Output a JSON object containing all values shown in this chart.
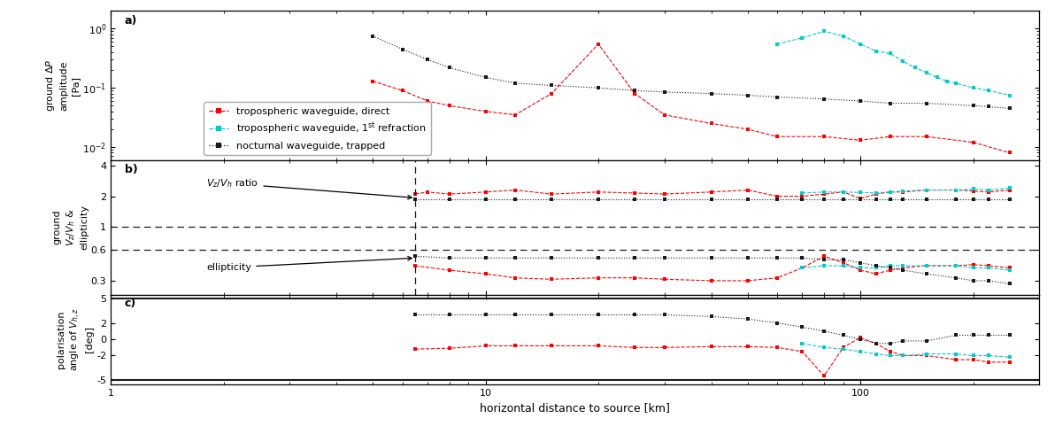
{
  "xlabel": "horizontal distance to source [km]",
  "ylabel_a": "ground $\\Delta P$\namplitude\n[Pa]",
  "ylabel_b": "ground\n$V_z/V_h$ &\nellipticity",
  "ylabel_c": "polarisation\nangle of $V_{h,z}$\n[deg]",
  "legend_labels": [
    "tropospheric waveguide, direct",
    "tropospheric waveguide, 1$^{\\rm st}$ refraction",
    "nocturnal waveguide, trapped"
  ],
  "panel_a": {
    "red_x": [
      5.0,
      6.0,
      7.0,
      8.0,
      10.0,
      12.0,
      15.0,
      20.0,
      25.0,
      30.0,
      40.0,
      50.0,
      60.0,
      80.0,
      100.0,
      120.0,
      150.0,
      200.0,
      250.0
    ],
    "red_y": [
      0.13,
      0.09,
      0.06,
      0.05,
      0.04,
      0.035,
      0.08,
      0.55,
      0.08,
      0.035,
      0.025,
      0.02,
      0.015,
      0.015,
      0.013,
      0.015,
      0.015,
      0.012,
      0.008
    ],
    "cyan_x": [
      60.0,
      70.0,
      80.0,
      90.0,
      100.0,
      110.0,
      120.0,
      130.0,
      140.0,
      150.0,
      160.0,
      170.0,
      180.0,
      200.0,
      220.0,
      250.0
    ],
    "cyan_y": [
      0.55,
      0.7,
      0.9,
      0.75,
      0.55,
      0.42,
      0.38,
      0.28,
      0.22,
      0.18,
      0.15,
      0.13,
      0.12,
      0.1,
      0.09,
      0.075
    ],
    "black_x": [
      5.0,
      6.0,
      7.0,
      8.0,
      10.0,
      12.0,
      15.0,
      20.0,
      25.0,
      30.0,
      40.0,
      50.0,
      60.0,
      80.0,
      100.0,
      120.0,
      150.0,
      200.0,
      220.0,
      250.0
    ],
    "black_y": [
      0.75,
      0.45,
      0.3,
      0.22,
      0.15,
      0.12,
      0.11,
      0.1,
      0.09,
      0.085,
      0.08,
      0.075,
      0.07,
      0.065,
      0.06,
      0.055,
      0.055,
      0.05,
      0.048,
      0.045
    ]
  },
  "panel_b": {
    "dashed_line_x": 6.5,
    "red_ratio_x": [
      6.5,
      7.0,
      8.0,
      10.0,
      12.0,
      15.0,
      20.0,
      25.0,
      30.0,
      40.0,
      50.0,
      60.0,
      70.0,
      80.0,
      90.0,
      100.0,
      110.0,
      120.0,
      130.0,
      150.0,
      180.0,
      200.0,
      220.0,
      250.0
    ],
    "red_ratio_y": [
      2.1,
      2.2,
      2.1,
      2.2,
      2.3,
      2.1,
      2.2,
      2.15,
      2.1,
      2.2,
      2.3,
      2.0,
      2.0,
      2.1,
      2.2,
      1.9,
      2.1,
      2.2,
      2.2,
      2.3,
      2.3,
      2.25,
      2.2,
      2.3
    ],
    "black_ratio_x": [
      6.5,
      8.0,
      10.0,
      12.0,
      15.0,
      20.0,
      25.0,
      30.0,
      40.0,
      50.0,
      60.0,
      70.0,
      80.0,
      90.0,
      100.0,
      110.0,
      120.0,
      130.0,
      150.0,
      180.0,
      200.0,
      220.0,
      250.0
    ],
    "black_ratio_y": [
      1.85,
      1.85,
      1.85,
      1.85,
      1.85,
      1.85,
      1.85,
      1.85,
      1.85,
      1.85,
      1.85,
      1.85,
      1.85,
      1.85,
      1.85,
      1.85,
      1.85,
      1.85,
      1.85,
      1.85,
      1.85,
      1.85,
      1.85
    ],
    "cyan_ratio_x": [
      70.0,
      80.0,
      90.0,
      100.0,
      110.0,
      120.0,
      130.0,
      150.0,
      180.0,
      200.0,
      220.0,
      250.0
    ],
    "cyan_ratio_y": [
      2.15,
      2.2,
      2.2,
      2.18,
      2.15,
      2.2,
      2.25,
      2.3,
      2.3,
      2.35,
      2.3,
      2.4
    ],
    "red_ellip_x": [
      6.5,
      8.0,
      10.0,
      12.0,
      15.0,
      20.0,
      25.0,
      30.0,
      40.0,
      50.0,
      60.0,
      70.0,
      80.0,
      90.0,
      100.0,
      110.0,
      120.0,
      130.0,
      150.0,
      180.0,
      200.0,
      220.0,
      250.0
    ],
    "red_ellip_y": [
      0.42,
      0.38,
      0.35,
      0.32,
      0.31,
      0.32,
      0.32,
      0.31,
      0.3,
      0.3,
      0.32,
      0.4,
      0.52,
      0.45,
      0.38,
      0.35,
      0.38,
      0.4,
      0.42,
      0.42,
      0.43,
      0.42,
      0.4
    ],
    "black_ellip_x": [
      6.5,
      8.0,
      10.0,
      12.0,
      15.0,
      20.0,
      25.0,
      30.0,
      40.0,
      50.0,
      60.0,
      70.0,
      80.0,
      90.0,
      100.0,
      110.0,
      120.0,
      130.0,
      150.0,
      180.0,
      200.0,
      220.0,
      250.0
    ],
    "black_ellip_y": [
      0.52,
      0.5,
      0.5,
      0.5,
      0.5,
      0.5,
      0.5,
      0.5,
      0.5,
      0.5,
      0.5,
      0.5,
      0.48,
      0.48,
      0.45,
      0.42,
      0.4,
      0.38,
      0.35,
      0.32,
      0.3,
      0.3,
      0.28
    ],
    "cyan_ellip_x": [
      70.0,
      80.0,
      90.0,
      100.0,
      110.0,
      120.0,
      130.0,
      150.0,
      180.0,
      200.0,
      220.0,
      250.0
    ],
    "cyan_ellip_y": [
      0.4,
      0.42,
      0.42,
      0.4,
      0.4,
      0.42,
      0.42,
      0.42,
      0.42,
      0.4,
      0.4,
      0.38
    ],
    "hline_1": 1.0,
    "hline_2": 0.6,
    "yticks": [
      0.3,
      0.6,
      1.0,
      2.0,
      4.0
    ],
    "ylim": [
      0.22,
      4.5
    ]
  },
  "panel_c": {
    "red_x": [
      6.5,
      8.0,
      10.0,
      12.0,
      15.0,
      20.0,
      25.0,
      30.0,
      40.0,
      50.0,
      60.0,
      70.0,
      80.0,
      90.0,
      100.0,
      110.0,
      120.0,
      130.0,
      150.0,
      180.0,
      200.0,
      220.0,
      250.0
    ],
    "red_y": [
      -1.2,
      -1.1,
      -0.8,
      -0.8,
      -0.8,
      -0.8,
      -1.0,
      -1.0,
      -0.9,
      -0.9,
      -1.0,
      -1.5,
      -4.5,
      -1.0,
      0.2,
      -0.5,
      -1.5,
      -2.0,
      -2.0,
      -2.5,
      -2.5,
      -2.8,
      -2.8
    ],
    "black_x": [
      6.5,
      8.0,
      10.0,
      12.0,
      15.0,
      20.0,
      25.0,
      30.0,
      40.0,
      50.0,
      60.0,
      70.0,
      80.0,
      90.0,
      100.0,
      110.0,
      120.0,
      130.0,
      150.0,
      180.0,
      200.0,
      220.0,
      250.0
    ],
    "black_y": [
      3.0,
      3.0,
      3.0,
      3.0,
      3.0,
      3.0,
      3.0,
      3.0,
      2.8,
      2.5,
      2.0,
      1.5,
      1.0,
      0.5,
      0.0,
      -0.5,
      -0.5,
      -0.2,
      -0.2,
      0.5,
      0.5,
      0.5,
      0.5
    ],
    "cyan_x": [
      70.0,
      80.0,
      90.0,
      100.0,
      110.0,
      120.0,
      130.0,
      150.0,
      180.0,
      200.0,
      220.0,
      250.0
    ],
    "cyan_y": [
      -0.5,
      -1.0,
      -1.2,
      -1.5,
      -1.8,
      -2.0,
      -2.0,
      -1.8,
      -1.8,
      -2.0,
      -2.0,
      -2.2
    ],
    "yticks": [
      -5,
      -2,
      0,
      2,
      5
    ],
    "ylim": [
      -5.5,
      5.5
    ]
  },
  "xlim": [
    1,
    300
  ],
  "ylim_a": [
    0.006,
    2.0
  ],
  "red_color": "#FF0000",
  "cyan_color": "#00CCCC",
  "black_color": "#1a1a1a"
}
